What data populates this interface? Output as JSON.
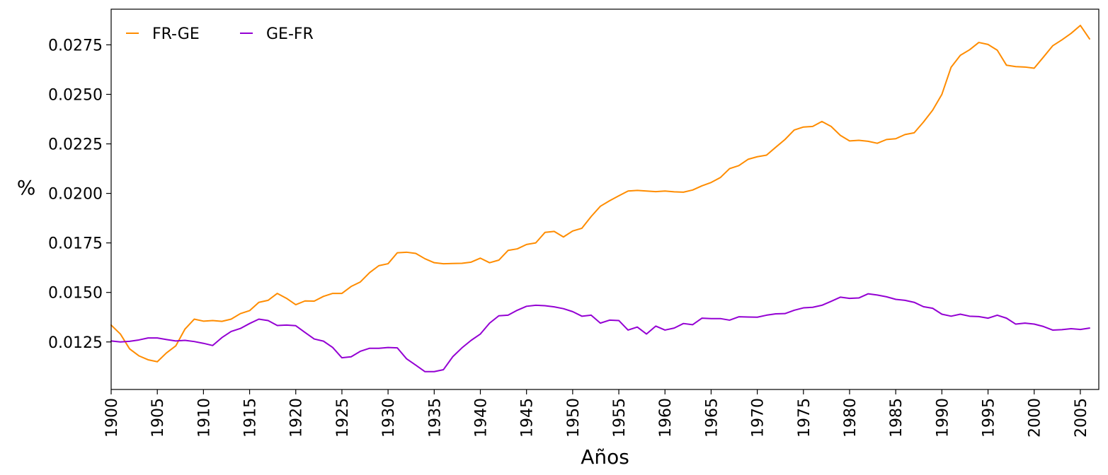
{
  "chart_data": {
    "type": "line",
    "xlabel": "Años",
    "ylabel": "%",
    "xlim": [
      1900,
      2007
    ],
    "ylim": [
      0.0101,
      0.0293
    ],
    "xticks": [
      1900,
      1905,
      1910,
      1915,
      1920,
      1925,
      1930,
      1935,
      1940,
      1945,
      1950,
      1955,
      1960,
      1965,
      1970,
      1975,
      1980,
      1985,
      1990,
      1995,
      2000,
      2005
    ],
    "yticks": [
      0.0125,
      0.015,
      0.0175,
      0.02,
      0.0225,
      0.025,
      0.0275
    ],
    "ytick_labels": [
      "0.0125",
      "0.0150",
      "0.0175",
      "0.0200",
      "0.0225",
      "0.0250",
      "0.0275"
    ],
    "grid": false,
    "legend": "top-left",
    "x": [
      1900,
      1901,
      1902,
      1903,
      1904,
      1905,
      1906,
      1907,
      1908,
      1909,
      1910,
      1911,
      1912,
      1913,
      1914,
      1915,
      1916,
      1917,
      1918,
      1919,
      1920,
      1921,
      1922,
      1923,
      1924,
      1925,
      1926,
      1927,
      1928,
      1929,
      1930,
      1931,
      1932,
      1933,
      1934,
      1935,
      1936,
      1937,
      1938,
      1939,
      1940,
      1941,
      1942,
      1943,
      1944,
      1945,
      1946,
      1947,
      1948,
      1949,
      1950,
      1951,
      1952,
      1953,
      1954,
      1955,
      1956,
      1957,
      1958,
      1959,
      1960,
      1961,
      1962,
      1963,
      1964,
      1965,
      1966,
      1967,
      1968,
      1969,
      1970,
      1971,
      1972,
      1973,
      1974,
      1975,
      1976,
      1977,
      1978,
      1979,
      1980,
      1981,
      1982,
      1983,
      1984,
      1985,
      1986,
      1987,
      1988,
      1989,
      1990,
      1991,
      1992,
      1993,
      1994,
      1995,
      1996,
      1997,
      1998,
      1999,
      2000,
      2001,
      2002,
      2003,
      2004,
      2005,
      2006
    ],
    "series": [
      {
        "name": "FR-GE",
        "color": "#ff8c00",
        "values": [
          0.01335,
          0.0129,
          0.01215,
          0.0118,
          0.0116,
          0.0115,
          0.01195,
          0.0123,
          0.01315,
          0.01365,
          0.01355,
          0.01358,
          0.01354,
          0.01365,
          0.01393,
          0.01408,
          0.0145,
          0.0146,
          0.01495,
          0.0147,
          0.01438,
          0.01457,
          0.01456,
          0.0148,
          0.01495,
          0.01495,
          0.0153,
          0.01553,
          0.016,
          0.01635,
          0.01645,
          0.017,
          0.01703,
          0.01697,
          0.0167,
          0.0165,
          0.01645,
          0.01646,
          0.01647,
          0.01653,
          0.01673,
          0.0165,
          0.01663,
          0.01712,
          0.0172,
          0.01742,
          0.0175,
          0.01803,
          0.01808,
          0.0178,
          0.0181,
          0.01824,
          0.01883,
          0.01935,
          0.01963,
          0.01988,
          0.02012,
          0.02015,
          0.02012,
          0.02009,
          0.02012,
          0.02008,
          0.02006,
          0.02017,
          0.02038,
          0.02055,
          0.0208,
          0.02125,
          0.0214,
          0.02172,
          0.02185,
          0.02193,
          0.02233,
          0.02272,
          0.0232,
          0.02335,
          0.02338,
          0.02363,
          0.02338,
          0.02293,
          0.02265,
          0.02268,
          0.02263,
          0.02253,
          0.02272,
          0.02276,
          0.02297,
          0.02306,
          0.0236,
          0.0242,
          0.025,
          0.02637,
          0.02697,
          0.02725,
          0.02762,
          0.02752,
          0.02723,
          0.02647,
          0.0264,
          0.02638,
          0.02632,
          0.02688,
          0.02745,
          0.02775,
          0.02808,
          0.02848,
          0.0278
        ]
      },
      {
        "name": "GE-FR",
        "color": "#9400d3",
        "values": [
          0.01255,
          0.0125,
          0.01253,
          0.0126,
          0.0127,
          0.0127,
          0.01262,
          0.01255,
          0.01258,
          0.01252,
          0.01243,
          0.01232,
          0.01272,
          0.01303,
          0.01318,
          0.01343,
          0.01365,
          0.01358,
          0.01333,
          0.01335,
          0.01332,
          0.01298,
          0.01265,
          0.01254,
          0.01222,
          0.0117,
          0.01175,
          0.01203,
          0.01218,
          0.01218,
          0.01222,
          0.0122,
          0.01165,
          0.01133,
          0.011,
          0.011,
          0.0111,
          0.01175,
          0.0122,
          0.01258,
          0.0129,
          0.01345,
          0.01382,
          0.01385,
          0.0141,
          0.0143,
          0.01435,
          0.01433,
          0.01427,
          0.01418,
          0.01403,
          0.0138,
          0.01385,
          0.01345,
          0.0136,
          0.01358,
          0.0131,
          0.01325,
          0.0129,
          0.0133,
          0.0131,
          0.0132,
          0.01343,
          0.01337,
          0.0137,
          0.01368,
          0.01368,
          0.0136,
          0.01377,
          0.01376,
          0.01375,
          0.01385,
          0.01392,
          0.01393,
          0.0141,
          0.01422,
          0.01425,
          0.01435,
          0.01455,
          0.01476,
          0.0147,
          0.01472,
          0.01493,
          0.01487,
          0.01478,
          0.01465,
          0.0146,
          0.0145,
          0.01428,
          0.0142,
          0.0139,
          0.0138,
          0.0139,
          0.0138,
          0.01378,
          0.0137,
          0.01385,
          0.0137,
          0.0134,
          0.01345,
          0.0134,
          0.01328,
          0.0131,
          0.01312,
          0.01317,
          0.01313,
          0.0132
        ]
      }
    ]
  }
}
